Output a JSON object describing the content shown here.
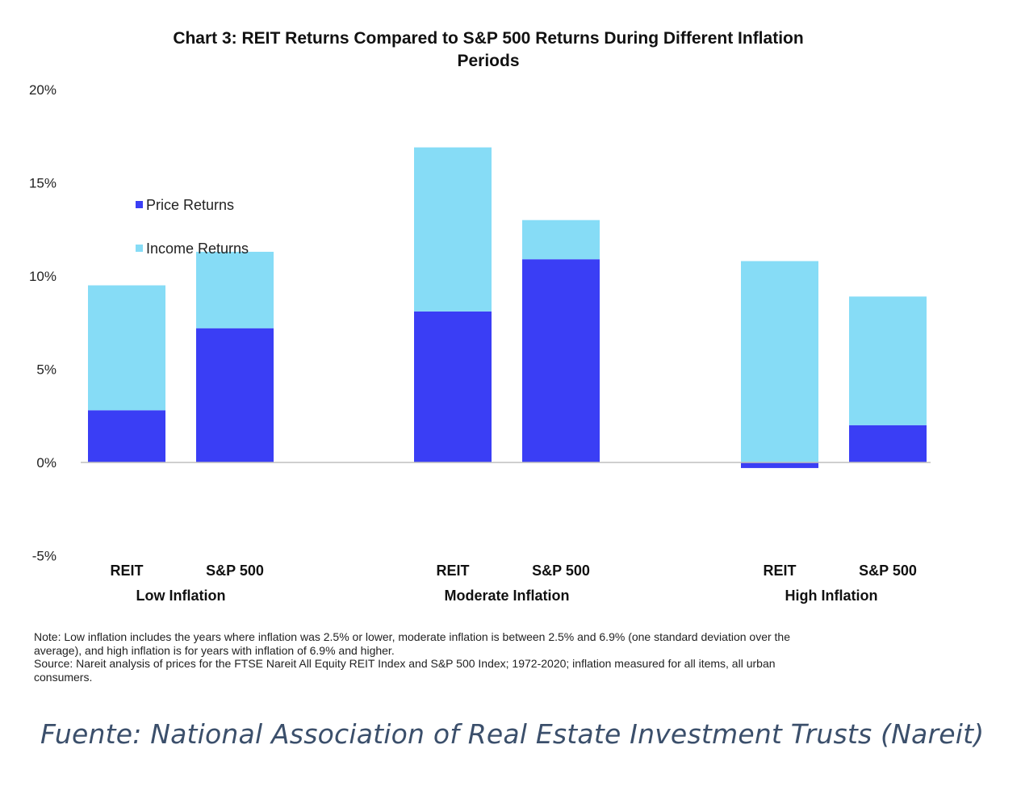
{
  "chart_data": {
    "type": "bar",
    "stacked": true,
    "title": "Chart 3: REIT Returns Compared to S&P 500 Returns During Different Inflation Periods",
    "title_lines": [
      "Chart 3: REIT Returns Compared to S&P 500 Returns During Different Inflation",
      "Periods"
    ],
    "groups": [
      "Low Inflation",
      "Moderate Inflation",
      "High Inflation"
    ],
    "categories": [
      "REIT",
      "S&P 500",
      "REIT",
      "S&P 500",
      "REIT",
      "S&P 500"
    ],
    "series": [
      {
        "name": "Price Returns",
        "color": "#3a3ef5",
        "values": [
          2.8,
          7.2,
          8.1,
          10.9,
          -0.3,
          2.0
        ]
      },
      {
        "name": "Income Returns",
        "color": "#86dcf6",
        "values": [
          6.7,
          4.1,
          8.8,
          2.1,
          10.8,
          6.9
        ]
      }
    ],
    "ylim": [
      -5,
      20
    ],
    "yticks": [
      -5,
      0,
      5,
      10,
      15,
      20
    ],
    "ytick_labels": [
      "-5%",
      "0%",
      "5%",
      "10%",
      "15%",
      "20%"
    ],
    "xlabel": "",
    "ylabel": "",
    "legend": "upper-left inside plot",
    "grid": false
  },
  "note_lines": [
    "Note: Low inflation includes the years where inflation was 2.5% or lower, moderate inflation is between 2.5% and 6.9% (one standard deviation over the",
    "average), and high inflation is for years with inflation of 6.9% and higher.",
    "Source: Nareit analysis of prices for the FTSE Nareit All Equity REIT Index and S&P 500 Index; 1972-2020; inflation measured for all items, all urban",
    "consumers."
  ],
  "caption": "Fuente: National Association of Real Estate Investment Trusts (Nareit)",
  "colors": {
    "axis": "#bfbfbf",
    "caption": "#3b4f6b"
  }
}
